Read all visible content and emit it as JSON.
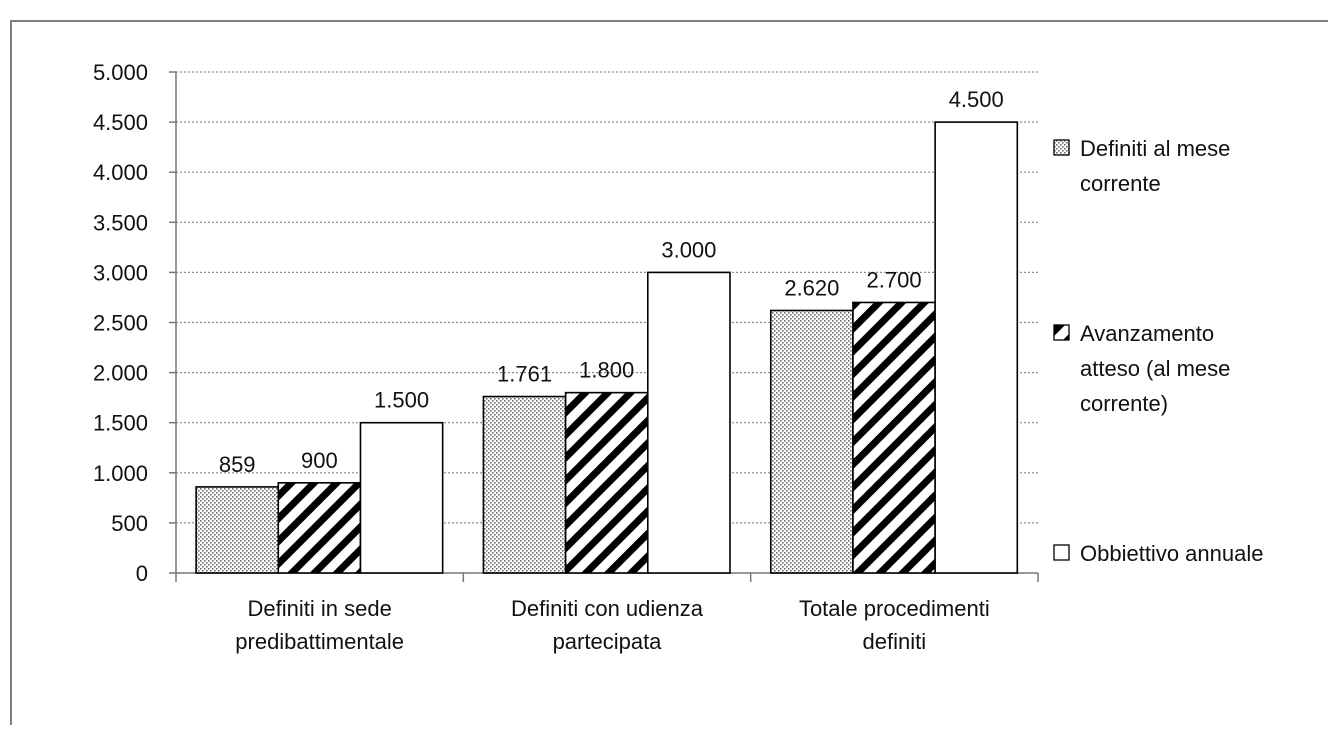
{
  "chart_data": {
    "type": "bar",
    "title": "",
    "xlabel": "",
    "ylabel": "",
    "categories": [
      [
        "Definiti in sede",
        "predibattimentale"
      ],
      [
        "Definiti con udienza",
        "partecipata"
      ],
      [
        "Totale procedimenti",
        "definiti"
      ]
    ],
    "series": [
      {
        "name": [
          "Definiti al mese",
          "corrente"
        ],
        "values": [
          859,
          1761,
          2620
        ],
        "labels": [
          "859",
          "1.761",
          "2.620"
        ],
        "fill": "dots"
      },
      {
        "name": [
          "Avanzamento",
          "atteso (al mese",
          "corrente)"
        ],
        "values": [
          900,
          1800,
          2700
        ],
        "labels": [
          "900",
          "1.800",
          "2.700"
        ],
        "fill": "hatch"
      },
      {
        "name": [
          "Obbiettivo annuale"
        ],
        "values": [
          1500,
          3000,
          4500
        ],
        "labels": [
          "1.500",
          "3.000",
          "4.500"
        ],
        "fill": "white"
      }
    ],
    "ylim": [
      0,
      5000
    ],
    "yticks": [
      0,
      500,
      1000,
      1500,
      2000,
      2500,
      3000,
      3500,
      4000,
      4500,
      5000
    ],
    "ytick_labels": [
      "0",
      "500",
      "1.000",
      "1.500",
      "2.000",
      "2.500",
      "3.000",
      "3.500",
      "4.000",
      "4.500",
      "5.000"
    ],
    "grid": "dotted-horizontal",
    "legend": "right",
    "colors": {
      "bar_outline": "#000000",
      "dots": "#6f6f6f",
      "grid": "#8c8c8c"
    }
  }
}
